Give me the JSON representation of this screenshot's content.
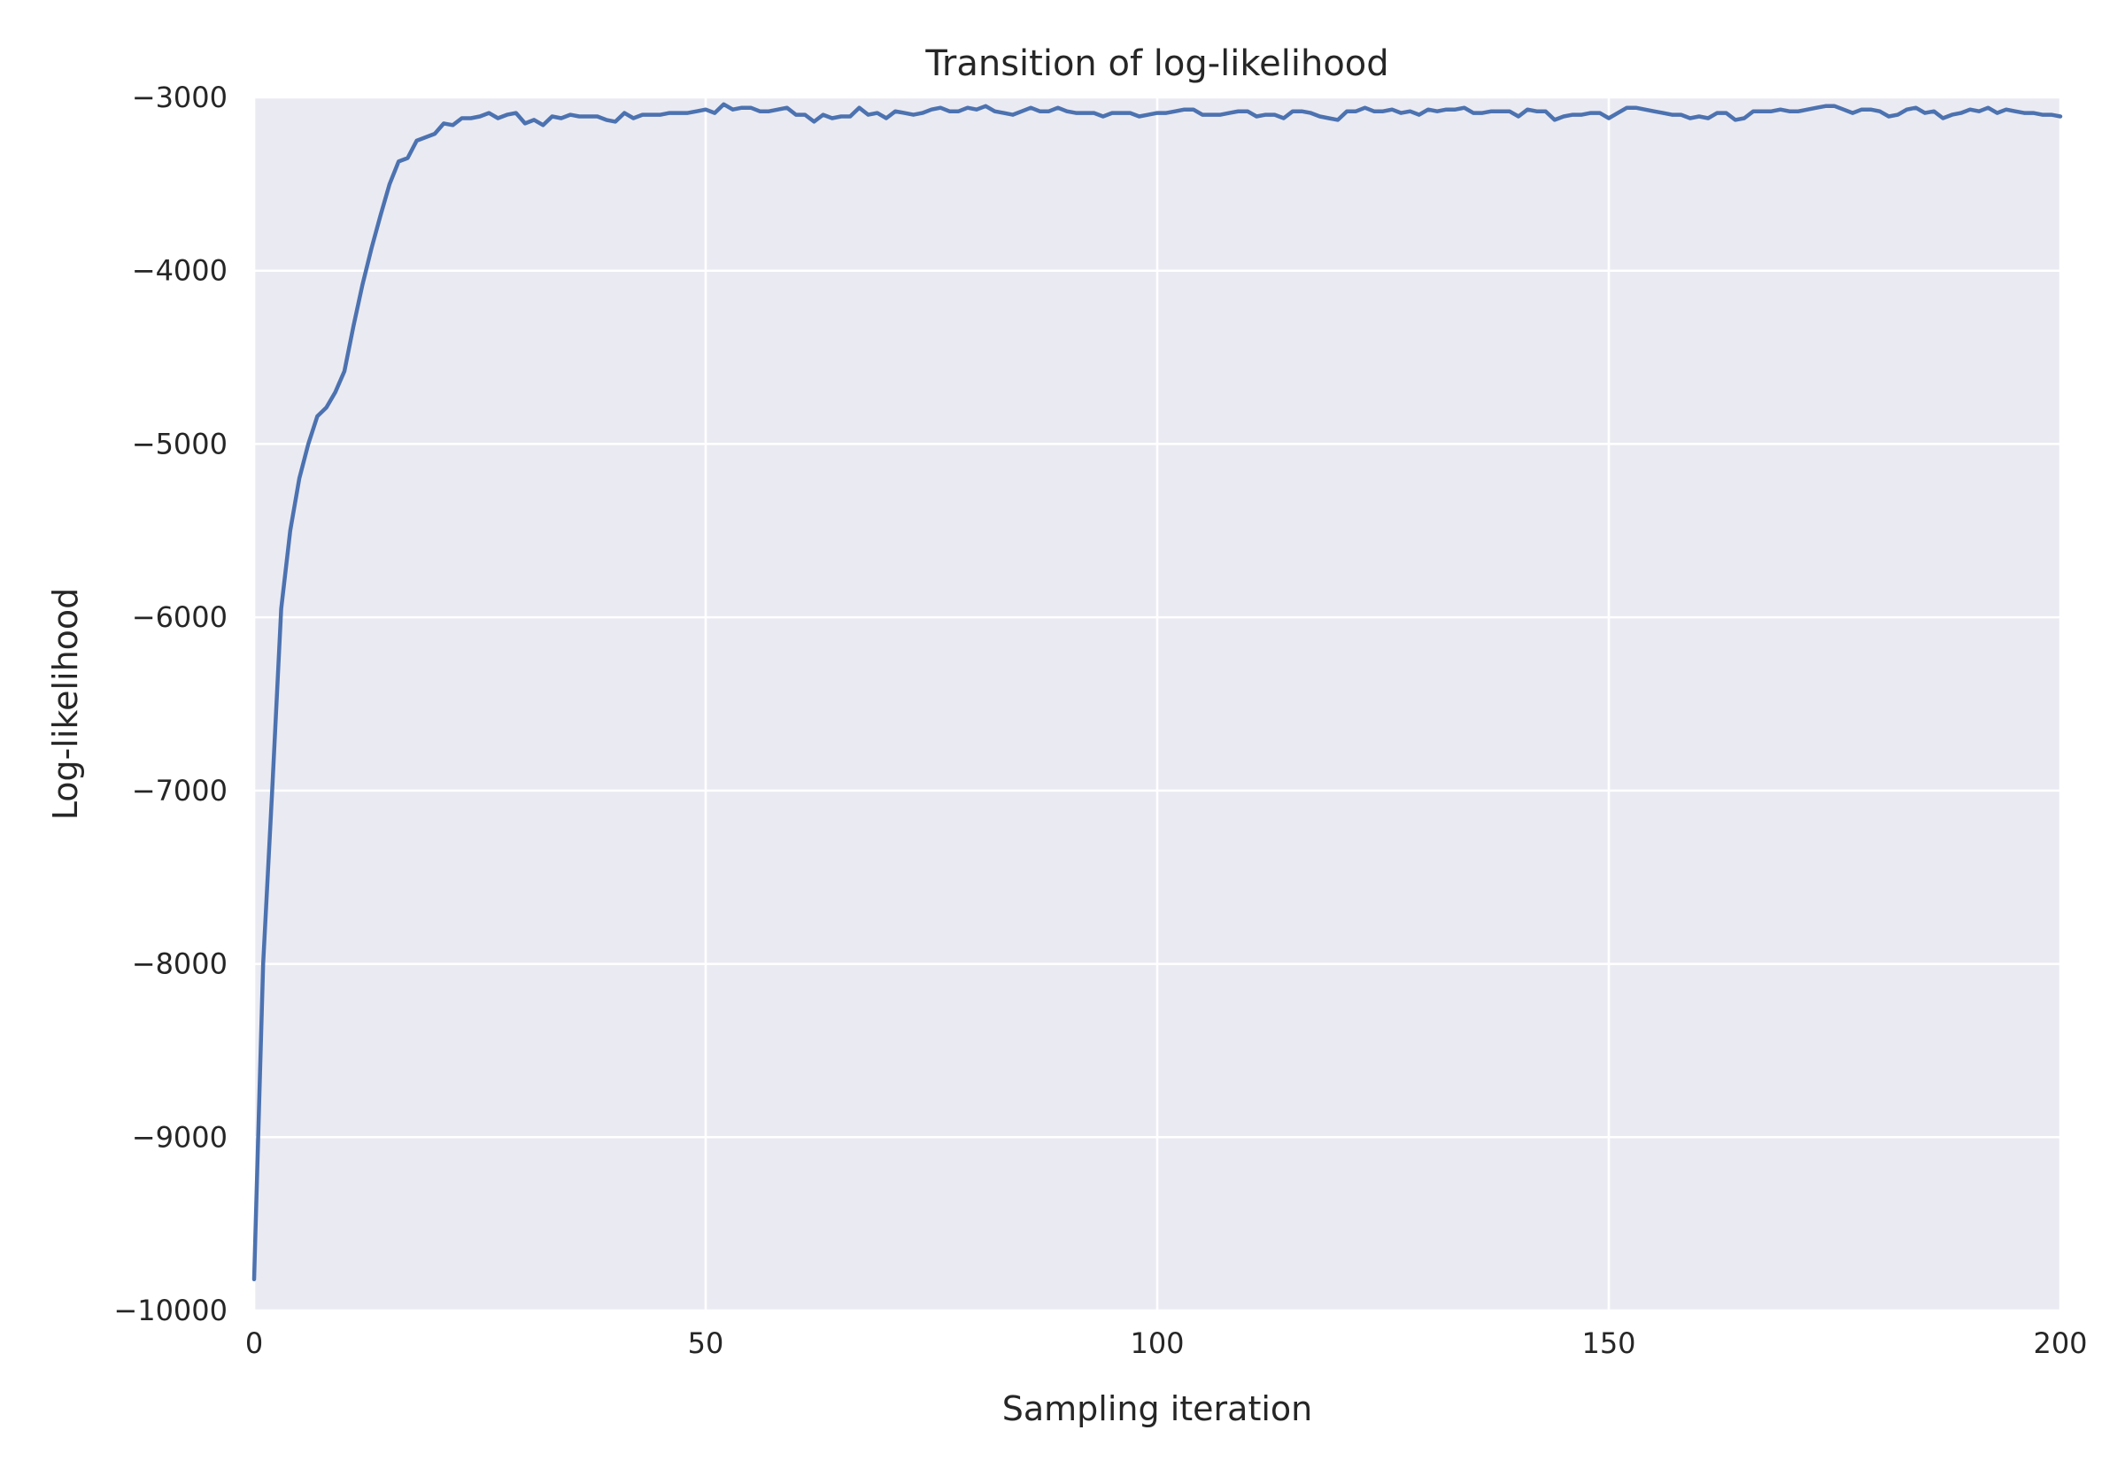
{
  "chart_data": {
    "type": "line",
    "title": "Transition of log-likelihood",
    "xlabel": "Sampling iteration",
    "ylabel": "Log-likelihood",
    "xlim": [
      0,
      200
    ],
    "ylim": [
      -10000,
      -3000
    ],
    "xticks": [
      0,
      50,
      100,
      150,
      200
    ],
    "xtick_labels": [
      "0",
      "50",
      "100",
      "150",
      "200"
    ],
    "yticks": [
      -10000,
      -9000,
      -8000,
      -7000,
      -6000,
      -5000,
      -4000,
      -3000
    ],
    "ytick_labels": [
      "−10000",
      "−9000",
      "−8000",
      "−7000",
      "−6000",
      "−5000",
      "−4000",
      "−3000"
    ],
    "grid": true,
    "background_color": "#eaeaf2",
    "grid_color": "#ffffff",
    "series": [
      {
        "color": "#4c72b0",
        "x": [
          0,
          1,
          2,
          3,
          4,
          5,
          6,
          7,
          8,
          9,
          10,
          11,
          12,
          13,
          14,
          15,
          16,
          17,
          18,
          19,
          20,
          21,
          22,
          23,
          24,
          25,
          26,
          27,
          28,
          29,
          30,
          31,
          32,
          33,
          34,
          35,
          36,
          37,
          38,
          39,
          40,
          41,
          42,
          43,
          44,
          45,
          46,
          47,
          48,
          49,
          50,
          51,
          52,
          53,
          54,
          55,
          56,
          57,
          58,
          59,
          60,
          61,
          62,
          63,
          64,
          65,
          66,
          67,
          68,
          69,
          70,
          71,
          72,
          73,
          74,
          75,
          76,
          77,
          78,
          79,
          80,
          81,
          82,
          83,
          84,
          85,
          86,
          87,
          88,
          89,
          90,
          91,
          92,
          93,
          94,
          95,
          96,
          97,
          98,
          99,
          100,
          101,
          102,
          103,
          104,
          105,
          106,
          107,
          108,
          109,
          110,
          111,
          112,
          113,
          114,
          115,
          116,
          117,
          118,
          119,
          120,
          121,
          122,
          123,
          124,
          125,
          126,
          127,
          128,
          129,
          130,
          131,
          132,
          133,
          134,
          135,
          136,
          137,
          138,
          139,
          140,
          141,
          142,
          143,
          144,
          145,
          146,
          147,
          148,
          149,
          150,
          151,
          152,
          153,
          154,
          155,
          156,
          157,
          158,
          159,
          160,
          161,
          162,
          163,
          164,
          165,
          166,
          167,
          168,
          169,
          170,
          171,
          172,
          173,
          174,
          175,
          176,
          177,
          178,
          179,
          180,
          181,
          182,
          183,
          184,
          185,
          186,
          187,
          188,
          189,
          190,
          191,
          192,
          193,
          194,
          195,
          196,
          197,
          198,
          199,
          200
        ],
        "y": [
          -9820,
          -8000,
          -7000,
          -5950,
          -5500,
          -5200,
          -5000,
          -4840,
          -4790,
          -4700,
          -4580,
          -4320,
          -4080,
          -3870,
          -3680,
          -3500,
          -3370,
          -3350,
          -3250,
          -3230,
          -3210,
          -3150,
          -3160,
          -3120,
          -3120,
          -3110,
          -3090,
          -3120,
          -3100,
          -3090,
          -3150,
          -3130,
          -3160,
          -3110,
          -3120,
          -3100,
          -3110,
          -3110,
          -3110,
          -3130,
          -3140,
          -3090,
          -3120,
          -3100,
          -3100,
          -3100,
          -3090,
          -3090,
          -3090,
          -3080,
          -3070,
          -3090,
          -3040,
          -3070,
          -3060,
          -3060,
          -3080,
          -3080,
          -3070,
          -3060,
          -3100,
          -3100,
          -3140,
          -3100,
          -3120,
          -3110,
          -3110,
          -3060,
          -3100,
          -3090,
          -3120,
          -3080,
          -3090,
          -3100,
          -3090,
          -3070,
          -3060,
          -3080,
          -3080,
          -3060,
          -3070,
          -3050,
          -3080,
          -3090,
          -3100,
          -3080,
          -3060,
          -3080,
          -3080,
          -3060,
          -3080,
          -3090,
          -3090,
          -3090,
          -3110,
          -3090,
          -3090,
          -3090,
          -3110,
          -3100,
          -3090,
          -3090,
          -3080,
          -3070,
          -3070,
          -3100,
          -3100,
          -3100,
          -3090,
          -3080,
          -3080,
          -3110,
          -3100,
          -3100,
          -3120,
          -3080,
          -3080,
          -3090,
          -3110,
          -3120,
          -3130,
          -3080,
          -3080,
          -3060,
          -3080,
          -3080,
          -3070,
          -3090,
          -3080,
          -3100,
          -3070,
          -3080,
          -3070,
          -3070,
          -3060,
          -3090,
          -3090,
          -3080,
          -3080,
          -3080,
          -3110,
          -3070,
          -3080,
          -3080,
          -3130,
          -3110,
          -3100,
          -3100,
          -3090,
          -3090,
          -3120,
          -3090,
          -3060,
          -3060,
          -3070,
          -3080,
          -3090,
          -3100,
          -3100,
          -3120,
          -3110,
          -3120,
          -3090,
          -3090,
          -3130,
          -3120,
          -3080,
          -3080,
          -3080,
          -3070,
          -3080,
          -3080,
          -3070,
          -3060,
          -3050,
          -3050,
          -3070,
          -3090,
          -3070,
          -3070,
          -3080,
          -3110,
          -3100,
          -3070,
          -3060,
          -3090,
          -3080,
          -3120,
          -3100,
          -3090,
          -3070,
          -3080,
          -3060,
          -3090,
          -3070,
          -3080,
          -3090,
          -3090,
          -3100,
          -3100,
          -3110
        ]
      }
    ]
  }
}
